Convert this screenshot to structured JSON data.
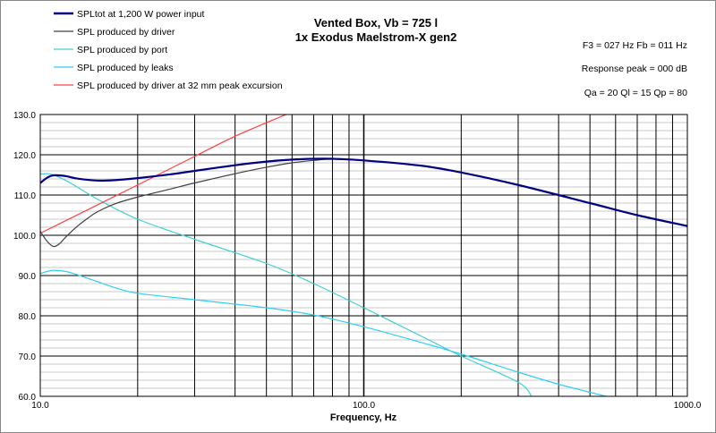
{
  "chart_data": {
    "type": "line",
    "title": [
      "Vented Box, Vb = 725 l",
      "1x Exodus Maelstrom-X  gen2"
    ],
    "xlabel": "Frequency, Hz",
    "ylabel": "",
    "xscale": "log",
    "xlim": [
      10,
      1000
    ],
    "ylim": [
      60,
      130
    ],
    "x_tick_labels": [
      "10.0",
      "100.0",
      "1000.0"
    ],
    "y_tick_labels": [
      "130.0",
      "120.0",
      "110.0",
      "100.0",
      "90.0",
      "80.0",
      "70.0",
      "60.0"
    ],
    "y_ticks": [
      130,
      120,
      110,
      100,
      90,
      80,
      70,
      60
    ],
    "x_ticks": [
      10,
      100,
      1000
    ],
    "grid": true,
    "legend_position": "top-left",
    "info_lines": [
      "F3 = 027  Hz  Fb = 011  Hz",
      "Response peak = 000  dB",
      "Qa = 20   Ql = 15   Qp = 80"
    ],
    "series": [
      {
        "name": "SPLtot at 1,200 W power input",
        "color": "#000080",
        "width": 2.2,
        "x": [
          10,
          10.5,
          11,
          12,
          13,
          15,
          17,
          20,
          25,
          30,
          40,
          50,
          60,
          70,
          80,
          100,
          150,
          200,
          300,
          500,
          700,
          1000
        ],
        "y": [
          113,
          114.3,
          114.9,
          114.7,
          114.1,
          113.6,
          113.7,
          114.2,
          115.1,
          116,
          117.4,
          118.3,
          118.8,
          119,
          119,
          118.6,
          117.3,
          115.6,
          112.5,
          108,
          105,
          102.3
        ]
      },
      {
        "name": "SPL produced by driver",
        "color": "#404040",
        "width": 1.2,
        "x": [
          10,
          10.5,
          11,
          11.5,
          12,
          13,
          14,
          15,
          17,
          20,
          25,
          30,
          40,
          50,
          60,
          70,
          80,
          100
        ],
        "y": [
          101,
          98.5,
          97.2,
          98,
          99.6,
          102.2,
          104.2,
          105.8,
          107.8,
          109.5,
          111.4,
          113,
          115.3,
          116.9,
          118,
          118.6,
          118.9,
          118.6
        ]
      },
      {
        "name": "SPL produced by port",
        "color": "#40d0d0",
        "width": 1.2,
        "x": [
          10,
          10.5,
          11,
          12,
          13,
          15,
          20,
          30,
          50,
          70,
          100,
          150,
          200,
          300,
          330
        ],
        "y": [
          115.2,
          115.3,
          115,
          113.6,
          112,
          109,
          104,
          99,
          93,
          88,
          82,
          75,
          70,
          63.5,
          60
        ]
      },
      {
        "name": "SPL produced by leaks",
        "color": "#30d0f0",
        "width": 1.2,
        "x": [
          10,
          10.5,
          11,
          12,
          13,
          15,
          17,
          20,
          30,
          50,
          70,
          100,
          150,
          200,
          300,
          400,
          500,
          560
        ],
        "y": [
          90.5,
          91,
          91.3,
          91,
          90.2,
          88.5,
          87,
          85.6,
          84,
          82,
          80.2,
          77.3,
          73.4,
          70.5,
          66,
          63,
          61,
          60
        ]
      },
      {
        "name": "SPL produced by driver at 32 mm peak excursion",
        "color": "#ff4040",
        "width": 1.2,
        "x": [
          10,
          20,
          30,
          40,
          57.5
        ],
        "y": [
          100.5,
          112.5,
          119.6,
          124.6,
          130
        ]
      }
    ]
  }
}
